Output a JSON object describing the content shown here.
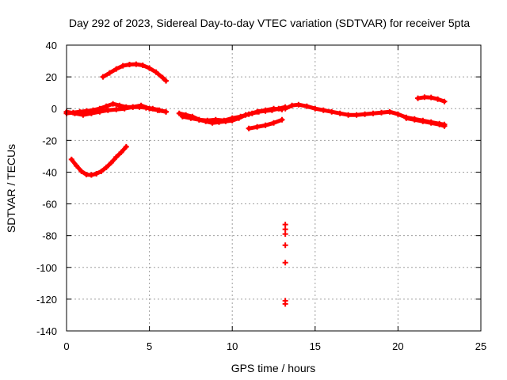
{
  "chart_data": {
    "type": "scatter",
    "title": "Day 292 of 2023, Sidereal Day-to-day VTEC variation (SDTVAR) for receiver 5pta",
    "xlabel": "GPS time / hours",
    "ylabel": "SDTVAR / TECUs",
    "xlim": [
      0,
      25
    ],
    "ylim": [
      -140,
      40
    ],
    "x_ticks": [
      0,
      5,
      10,
      15,
      20,
      25
    ],
    "y_ticks": [
      40,
      20,
      0,
      -20,
      -40,
      -60,
      -80,
      -100,
      -120,
      -140
    ],
    "grid": true,
    "marker": "+",
    "color": "#ff0000",
    "series": [
      {
        "name": "upper-arc",
        "x": [
          2.2,
          2.6,
          3.0,
          3.4,
          3.8,
          4.2,
          4.6,
          5.0,
          5.4,
          5.8,
          6.0
        ],
        "y": [
          20,
          22.5,
          25,
          27,
          27.8,
          28,
          27.3,
          25.5,
          23,
          19.5,
          17.5
        ]
      },
      {
        "name": "lower-arc",
        "x": [
          0.3,
          0.6,
          0.9,
          1.2,
          1.5,
          1.8,
          2.1,
          2.4,
          2.7,
          3.0,
          3.3,
          3.6
        ],
        "y": [
          -32,
          -36,
          -39.5,
          -41.5,
          -41.8,
          -41,
          -39.5,
          -37,
          -34,
          -30.5,
          -27.5,
          -24
        ]
      },
      {
        "name": "main-early",
        "x": [
          0,
          0.4,
          0.8,
          1.2,
          1.6,
          2.0,
          2.4,
          2.8,
          3.2,
          3.6,
          4.0,
          4.4,
          4.8,
          5.2,
          5.6,
          6.0
        ],
        "y": [
          -3,
          -2.5,
          -2,
          -1.5,
          -1,
          0,
          1.5,
          3,
          2,
          1,
          1,
          1,
          0.5,
          0,
          -1,
          -2
        ]
      },
      {
        "name": "main-early-2",
        "x": [
          0,
          0.5,
          1.0,
          1.5,
          2.0,
          2.5,
          3.0,
          3.5,
          4.0,
          4.5,
          5.0,
          5.5,
          6.0
        ],
        "y": [
          -2,
          -3,
          -4,
          -3,
          -2,
          -1,
          -0.5,
          0,
          1,
          2,
          0,
          -1,
          -2
        ]
      },
      {
        "name": "main-mid",
        "x": [
          6.8,
          7.2,
          7.6,
          8.0,
          8.4,
          8.8,
          9.2,
          9.6,
          10.0,
          10.4,
          10.8,
          11.2,
          11.6,
          12.0,
          12.4,
          12.8,
          13.2
        ],
        "y": [
          -3,
          -4,
          -5,
          -7,
          -8,
          -9,
          -8.5,
          -8,
          -7.5,
          -6,
          -4,
          -3,
          -2,
          -1.5,
          -1,
          0,
          1
        ]
      },
      {
        "name": "main-mid-2",
        "x": [
          7.0,
          7.5,
          8.0,
          8.5,
          9.0,
          9.5,
          10.0,
          10.5,
          11.0,
          11.5,
          12.0,
          12.5,
          13.0
        ],
        "y": [
          -5,
          -6,
          -7,
          -7.5,
          -7,
          -7.5,
          -6,
          -5,
          -3.5,
          -2,
          -1,
          0,
          -0.5
        ]
      },
      {
        "name": "low-branch",
        "x": [
          11.0,
          11.5,
          12.0,
          12.5,
          13.0
        ],
        "y": [
          -12.5,
          -11.5,
          -10.5,
          -9,
          -7
        ]
      },
      {
        "name": "main-late",
        "x": [
          13.2,
          13.6,
          14.0,
          14.5,
          15.0,
          15.5,
          16.0,
          16.5,
          17.0,
          17.5,
          18.0,
          18.5,
          19.0,
          19.5,
          20.0,
          20.5,
          21.0,
          21.5,
          22.0,
          22.5,
          22.8
        ],
        "y": [
          0,
          2,
          2.5,
          1.5,
          0,
          -1,
          -2,
          -3,
          -4,
          -4,
          -3.5,
          -3,
          -2.5,
          -2,
          -3.5,
          -5.5,
          -6.5,
          -7.5,
          -8.5,
          -9.5,
          -10
        ]
      },
      {
        "name": "main-late-2",
        "x": [
          20.5,
          21.0,
          21.5,
          22.0,
          22.5,
          22.8
        ],
        "y": [
          -6,
          -7,
          -8,
          -9,
          -10,
          -11
        ]
      },
      {
        "name": "late-arc",
        "x": [
          21.2,
          21.6,
          22.0,
          22.4,
          22.8
        ],
        "y": [
          6.5,
          7.2,
          7,
          6,
          4.5
        ]
      },
      {
        "name": "outliers",
        "x": [
          13.2,
          13.2,
          13.2,
          13.2,
          13.2,
          13.2,
          13.2
        ],
        "y": [
          -73,
          -76,
          -79,
          -86,
          -97,
          -121,
          -123
        ]
      }
    ]
  }
}
